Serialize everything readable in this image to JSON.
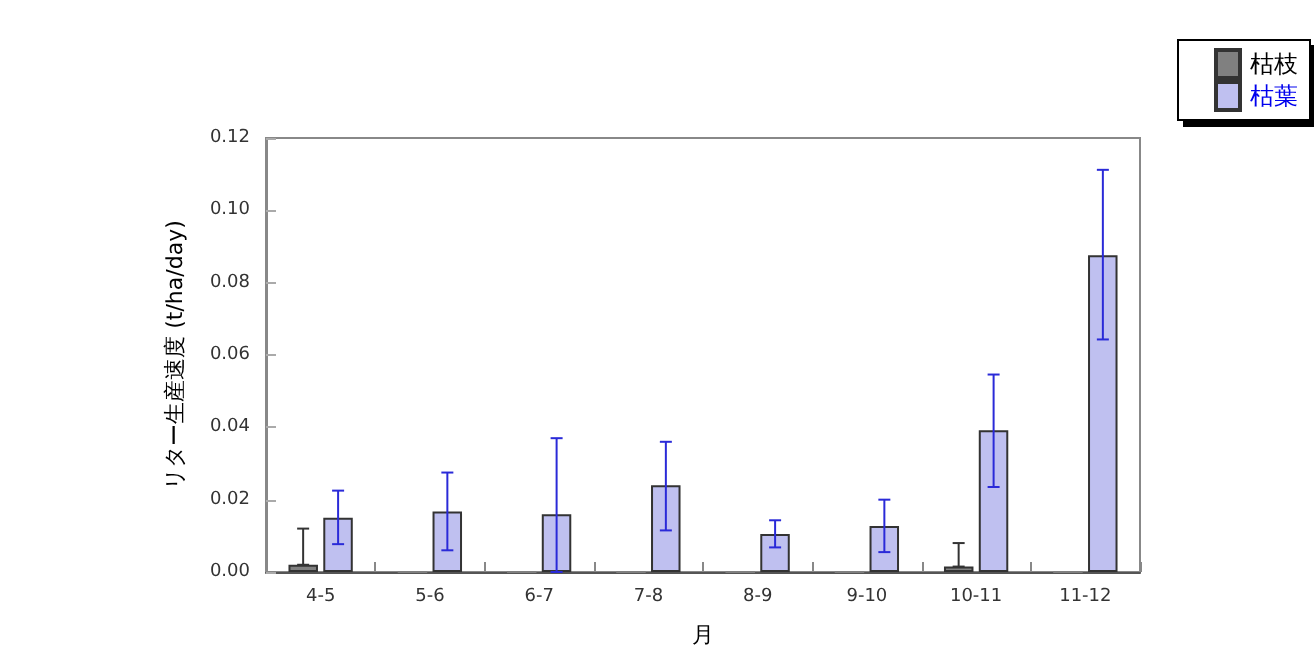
{
  "chart_data": {
    "type": "bar",
    "xlabel": "月",
    "ylabel": "リター生産速度 (t/ha/day)",
    "categories": [
      "4-5",
      "5-6",
      "6-7",
      "7-8",
      "8-9",
      "9-10",
      "10-11",
      "11-12"
    ],
    "series": [
      {
        "name": "枯枝",
        "color": "#808080",
        "values": [
          0.002,
          0,
          0,
          0,
          0,
          0,
          0.0015,
          0
        ],
        "errors": [
          [
            0.002,
            0.012
          ],
          null,
          null,
          null,
          null,
          null,
          [
            0.0015,
            0.008
          ],
          null
        ]
      },
      {
        "name": "枯葉",
        "color": "#bfc0f0",
        "values": [
          0.015,
          0.0167,
          0.016,
          0.024,
          0.0105,
          0.0127,
          0.0392,
          0.0876
        ],
        "errors": [
          [
            0.0077,
            0.0225
          ],
          [
            0.006,
            0.0275
          ],
          [
            0,
            0.037
          ],
          [
            0.0115,
            0.036
          ],
          [
            0.0068,
            0.0143
          ],
          [
            0.0055,
            0.02
          ],
          [
            0.0235,
            0.0546
          ],
          [
            0.0643,
            0.1112
          ]
        ]
      }
    ],
    "ylim": [
      0,
      0.12
    ],
    "yticks": [
      {
        "value": 0,
        "label": "0.00"
      },
      {
        "value": 0.02,
        "label": "0.02"
      },
      {
        "value": 0.04,
        "label": "0.04"
      },
      {
        "value": 0.06,
        "label": "0.06"
      },
      {
        "value": 0.08,
        "label": "0.08"
      },
      {
        "value": 0.1,
        "label": "0.10"
      },
      {
        "value": 0.12,
        "label": "0.12"
      }
    ],
    "grid": false,
    "legend": "top right"
  }
}
